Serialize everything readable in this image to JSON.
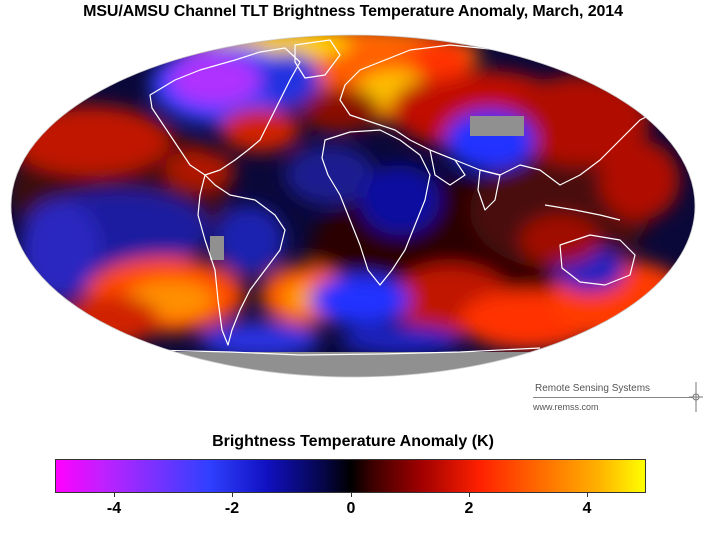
{
  "map": {
    "title": "MSU/AMSU Channel TLT Brightness Temperature Anomaly, March, 2014",
    "projection": "mollweide",
    "ocean_color": "#0a0838",
    "nodata_color": "#909090",
    "coastline_color": "#ffffff"
  },
  "logo": {
    "name": "Remote Sensing Systems",
    "url": "www.remss.com"
  },
  "colorbar": {
    "title": "Brightness Temperature Anomaly (K)",
    "min": -5,
    "max": 5,
    "ticks": [
      {
        "value": -4,
        "label": "-4"
      },
      {
        "value": -2,
        "label": "-2"
      },
      {
        "value": 0,
        "label": "0"
      },
      {
        "value": 2,
        "label": "2"
      },
      {
        "value": 4,
        "label": "4"
      }
    ],
    "colors": [
      "#ff00ff",
      "#3040ff",
      "#000000",
      "#ff2000",
      "#ffff00"
    ]
  }
}
